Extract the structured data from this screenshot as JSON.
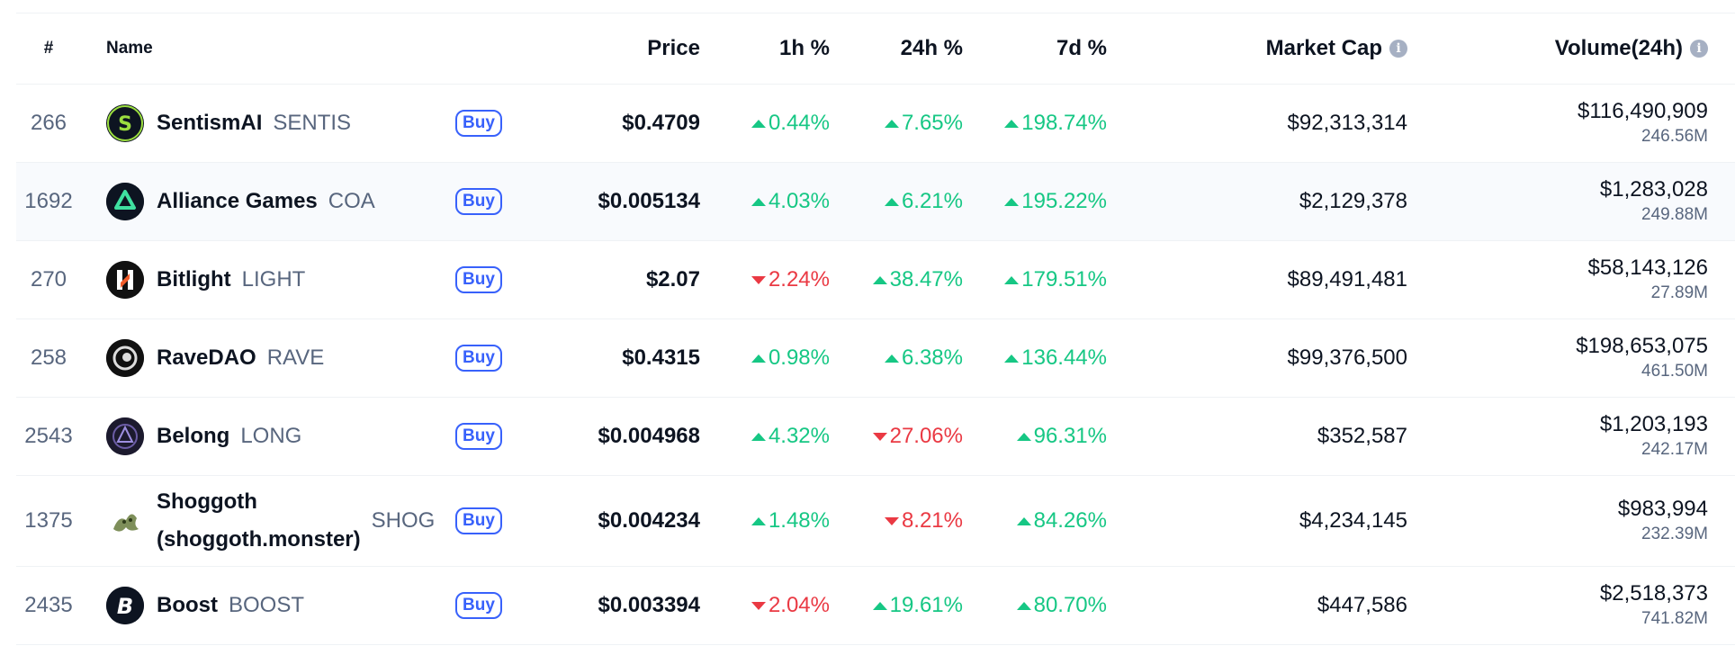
{
  "header": {
    "rank": "#",
    "name": "Name",
    "price": "Price",
    "h1": "1h %",
    "h24": "24h %",
    "d7": "7d %",
    "market_cap": "Market Cap",
    "volume": "Volume(24h)",
    "info_glyph": "i"
  },
  "buy_label": "Buy",
  "colors": {
    "up": "#16c784",
    "down": "#ea3943",
    "accent": "#3861fb"
  },
  "rows": [
    {
      "rank": "266",
      "name": "SentismAI",
      "symbol": "SENTIS",
      "icon": "sentismai-logo-icon",
      "price": "$0.4709",
      "h1": "0.44%",
      "h1_dir": "up",
      "h24": "7.65%",
      "h24_dir": "up",
      "d7": "198.74%",
      "d7_dir": "up",
      "market_cap": "$92,313,314",
      "volume": "$116,490,909",
      "volume_sub": "246.56M"
    },
    {
      "rank": "1692",
      "name": "Alliance Games",
      "symbol": "COA",
      "icon": "alliance-games-logo-icon",
      "price": "$0.005134",
      "h1": "4.03%",
      "h1_dir": "up",
      "h24": "6.21%",
      "h24_dir": "up",
      "d7": "195.22%",
      "d7_dir": "up",
      "market_cap": "$2,129,378",
      "volume": "$1,283,028",
      "volume_sub": "249.88M"
    },
    {
      "rank": "270",
      "name": "Bitlight",
      "symbol": "LIGHT",
      "icon": "bitlight-logo-icon",
      "price": "$2.07",
      "h1": "2.24%",
      "h1_dir": "down",
      "h24": "38.47%",
      "h24_dir": "up",
      "d7": "179.51%",
      "d7_dir": "up",
      "market_cap": "$89,491,481",
      "volume": "$58,143,126",
      "volume_sub": "27.89M"
    },
    {
      "rank": "258",
      "name": "RaveDAO",
      "symbol": "RAVE",
      "icon": "ravedao-logo-icon",
      "price": "$0.4315",
      "h1": "0.98%",
      "h1_dir": "up",
      "h24": "6.38%",
      "h24_dir": "up",
      "d7": "136.44%",
      "d7_dir": "up",
      "market_cap": "$99,376,500",
      "volume": "$198,653,075",
      "volume_sub": "461.50M"
    },
    {
      "rank": "2543",
      "name": "Belong",
      "symbol": "LONG",
      "icon": "belong-logo-icon",
      "price": "$0.004968",
      "h1": "4.32%",
      "h1_dir": "up",
      "h24": "27.06%",
      "h24_dir": "down",
      "d7": "96.31%",
      "d7_dir": "up",
      "market_cap": "$352,587",
      "volume": "$1,203,193",
      "volume_sub": "242.17M"
    },
    {
      "rank": "1375",
      "name_line1": "Shoggoth",
      "name_line2": "(shoggoth.monster)",
      "symbol": "SHOG",
      "icon": "shoggoth-logo-icon",
      "price": "$0.004234",
      "h1": "1.48%",
      "h1_dir": "up",
      "h24": "8.21%",
      "h24_dir": "down",
      "d7": "84.26%",
      "d7_dir": "up",
      "market_cap": "$4,234,145",
      "volume": "$983,994",
      "volume_sub": "232.39M"
    },
    {
      "rank": "2435",
      "name": "Boost",
      "symbol": "BOOST",
      "icon": "boost-logo-icon",
      "price": "$0.003394",
      "h1": "2.04%",
      "h1_dir": "down",
      "h24": "19.61%",
      "h24_dir": "up",
      "d7": "80.70%",
      "d7_dir": "up",
      "market_cap": "$447,586",
      "volume": "$2,518,373",
      "volume_sub": "741.82M"
    }
  ]
}
